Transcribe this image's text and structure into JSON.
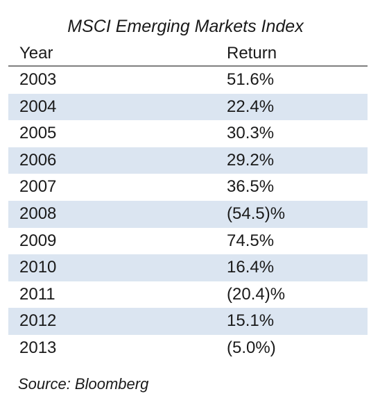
{
  "title": "MSCI Emerging Markets Index",
  "table": {
    "columns": [
      "Year",
      "Return"
    ],
    "rows": [
      {
        "year": "2003",
        "return": "51.6%"
      },
      {
        "year": "2004",
        "return": "22.4%"
      },
      {
        "year": "2005",
        "return": "30.3%"
      },
      {
        "year": "2006",
        "return": "29.2%"
      },
      {
        "year": "2007",
        "return": "36.5%"
      },
      {
        "year": "2008",
        "return": "(54.5)%"
      },
      {
        "year": "2009",
        "return": "74.5%"
      },
      {
        "year": "2010",
        "return": "16.4%"
      },
      {
        "year": "2011",
        "return": "(20.4)%"
      },
      {
        "year": "2012",
        "return": "15.1%"
      },
      {
        "year": "2013",
        "return": "(5.0%)"
      }
    ]
  },
  "source": "Source: Bloomberg",
  "colors": {
    "shaded_row": "#dbe5f1",
    "header_rule": "#7f7f7f"
  }
}
